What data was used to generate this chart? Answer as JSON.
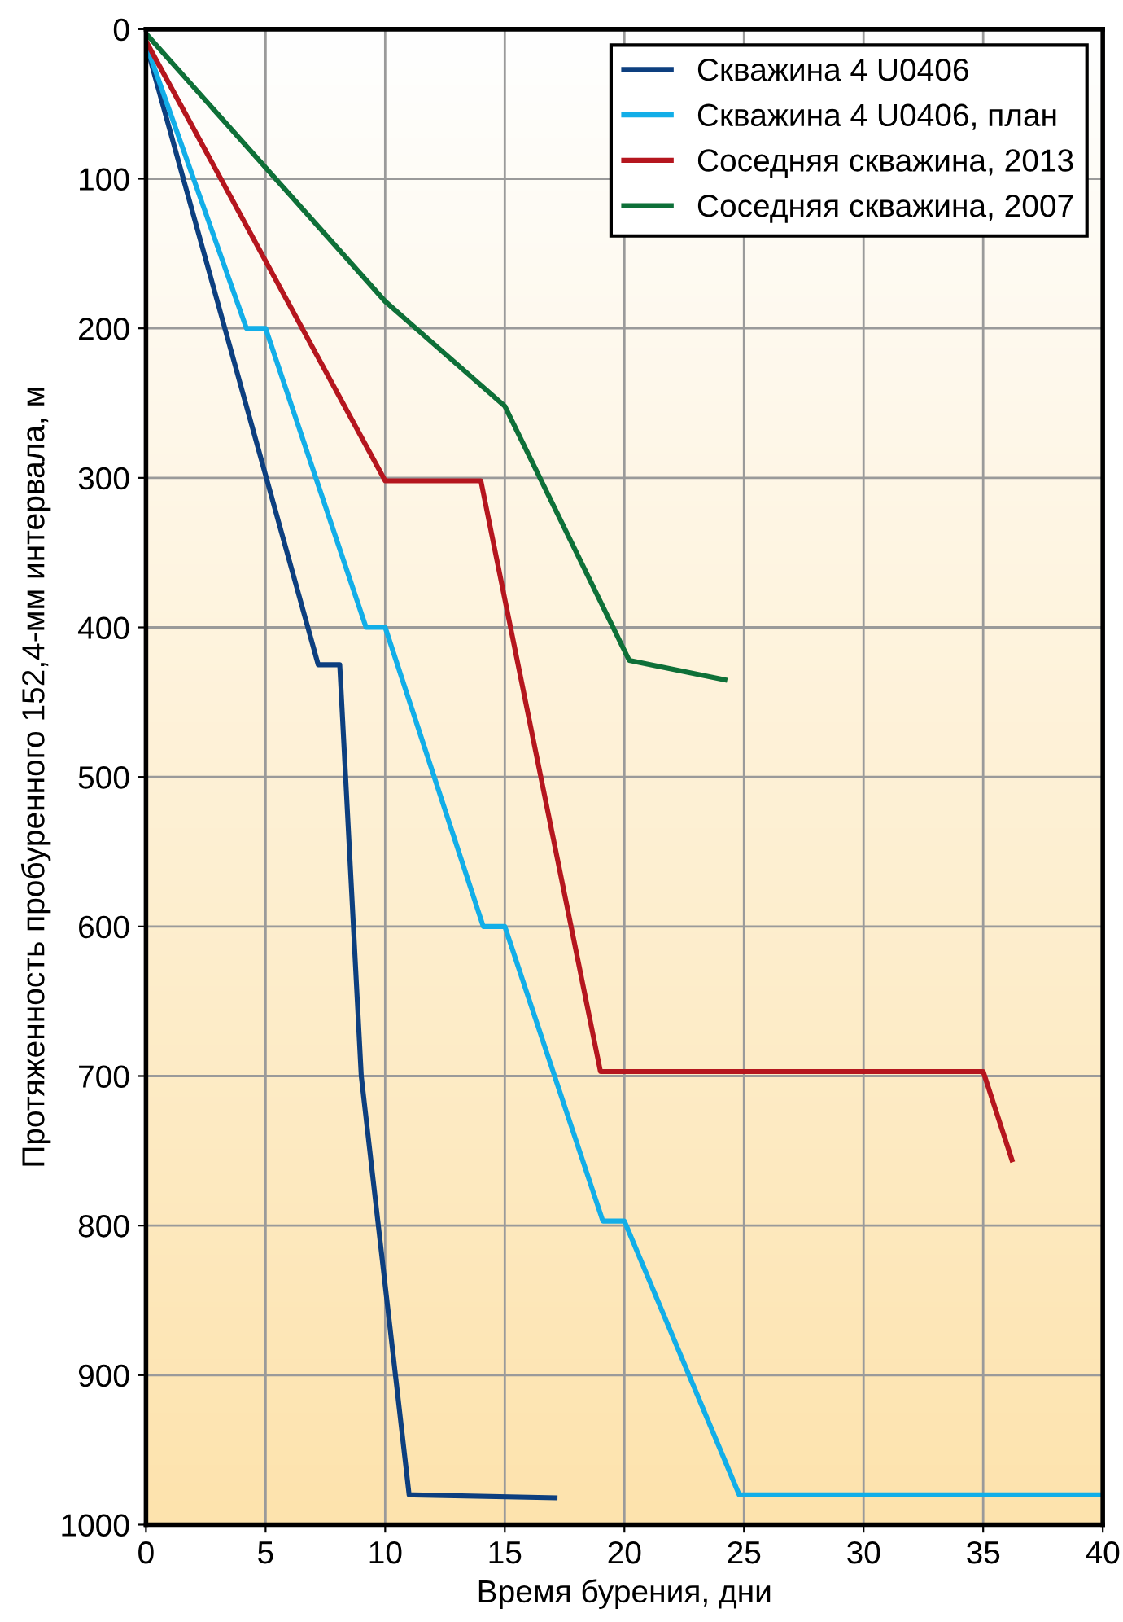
{
  "chart_data": {
    "type": "line",
    "xlabel": "Время бурения, дни",
    "ylabel": "Протяженность пробуренного 152,4-мм интервала, м",
    "xlim": [
      0,
      40
    ],
    "ylim": [
      1000,
      0
    ],
    "xticks": [
      0,
      5,
      10,
      15,
      20,
      25,
      30,
      35,
      40
    ],
    "yticks": [
      0,
      100,
      200,
      300,
      400,
      500,
      600,
      700,
      800,
      900,
      1000
    ],
    "grid": true,
    "legend": "top right",
    "marker": "none",
    "line_style": "solid",
    "series": [
      {
        "name": "Скважина 4 U0406",
        "color": "#0d3f7f",
        "x": [
          0,
          7.2,
          8.1,
          9,
          11,
          17.1
        ],
        "values": [
          10,
          425,
          425,
          700,
          980,
          982
        ]
      },
      {
        "name": "Скважина 4 U0406, план",
        "color": "#12aee8",
        "x": [
          0,
          4.2,
          5,
          9.2,
          10,
          14.1,
          15,
          19.1,
          20,
          24.8,
          40
        ],
        "values": [
          10,
          200,
          200,
          400,
          400,
          600,
          600,
          797,
          797,
          980,
          980
        ]
      },
      {
        "name": "Соседняя скважина, 2013",
        "color": "#b5161e",
        "x": [
          0,
          10,
          14,
          19,
          35,
          36.2
        ],
        "values": [
          8,
          302,
          302,
          697,
          697,
          756
        ]
      },
      {
        "name": "Соседняя скважина, 2007",
        "color": "#0e7038",
        "x": [
          0,
          10,
          15,
          20.2,
          24.2
        ],
        "values": [
          3,
          182,
          252,
          422,
          435
        ]
      }
    ]
  }
}
